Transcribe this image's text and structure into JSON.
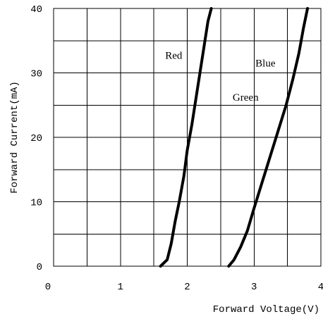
{
  "chart_data": {
    "type": "line",
    "title": "",
    "xlabel": "Forward Voltage(V)",
    "ylabel": "Forward Current(mA)",
    "xlim": [
      0,
      4
    ],
    "ylim": [
      0,
      40
    ],
    "xticks": [
      0,
      1,
      2,
      3,
      4
    ],
    "yticks": [
      0,
      10,
      20,
      30,
      40
    ],
    "x_tick_labels": [
      "0",
      "1",
      "2",
      "3",
      "4"
    ],
    "y_tick_labels": [
      "0",
      "10",
      "20",
      "30",
      "40"
    ],
    "grid": true,
    "grid_x_step": 0.5,
    "grid_y_step": 5,
    "series": [
      {
        "name": "Red",
        "color": "#000000",
        "x": [
          1.6,
          1.7,
          1.76,
          1.82,
          1.88,
          1.95,
          2.0,
          2.07,
          2.13,
          2.19,
          2.25,
          2.31,
          2.36
        ],
        "y": [
          0,
          1,
          3.5,
          7,
          10,
          14,
          18,
          22,
          26,
          30,
          34,
          38,
          40
        ]
      },
      {
        "name": "Blue",
        "color": "#000000",
        "x": [
          2.62,
          2.7,
          2.8,
          2.9,
          3.0,
          3.12,
          3.24,
          3.36,
          3.48,
          3.58,
          3.67,
          3.74,
          3.8
        ],
        "y": [
          0,
          1,
          3,
          5.5,
          9,
          13,
          17,
          21,
          25,
          29,
          33,
          37,
          40
        ]
      }
    ],
    "annotations": [
      {
        "text": "Red",
        "x": 1.67,
        "y": 32.2
      },
      {
        "text": "Blue",
        "x": 3.02,
        "y": 31.0
      },
      {
        "text": "Green",
        "x": 2.68,
        "y": 25.7
      }
    ]
  }
}
